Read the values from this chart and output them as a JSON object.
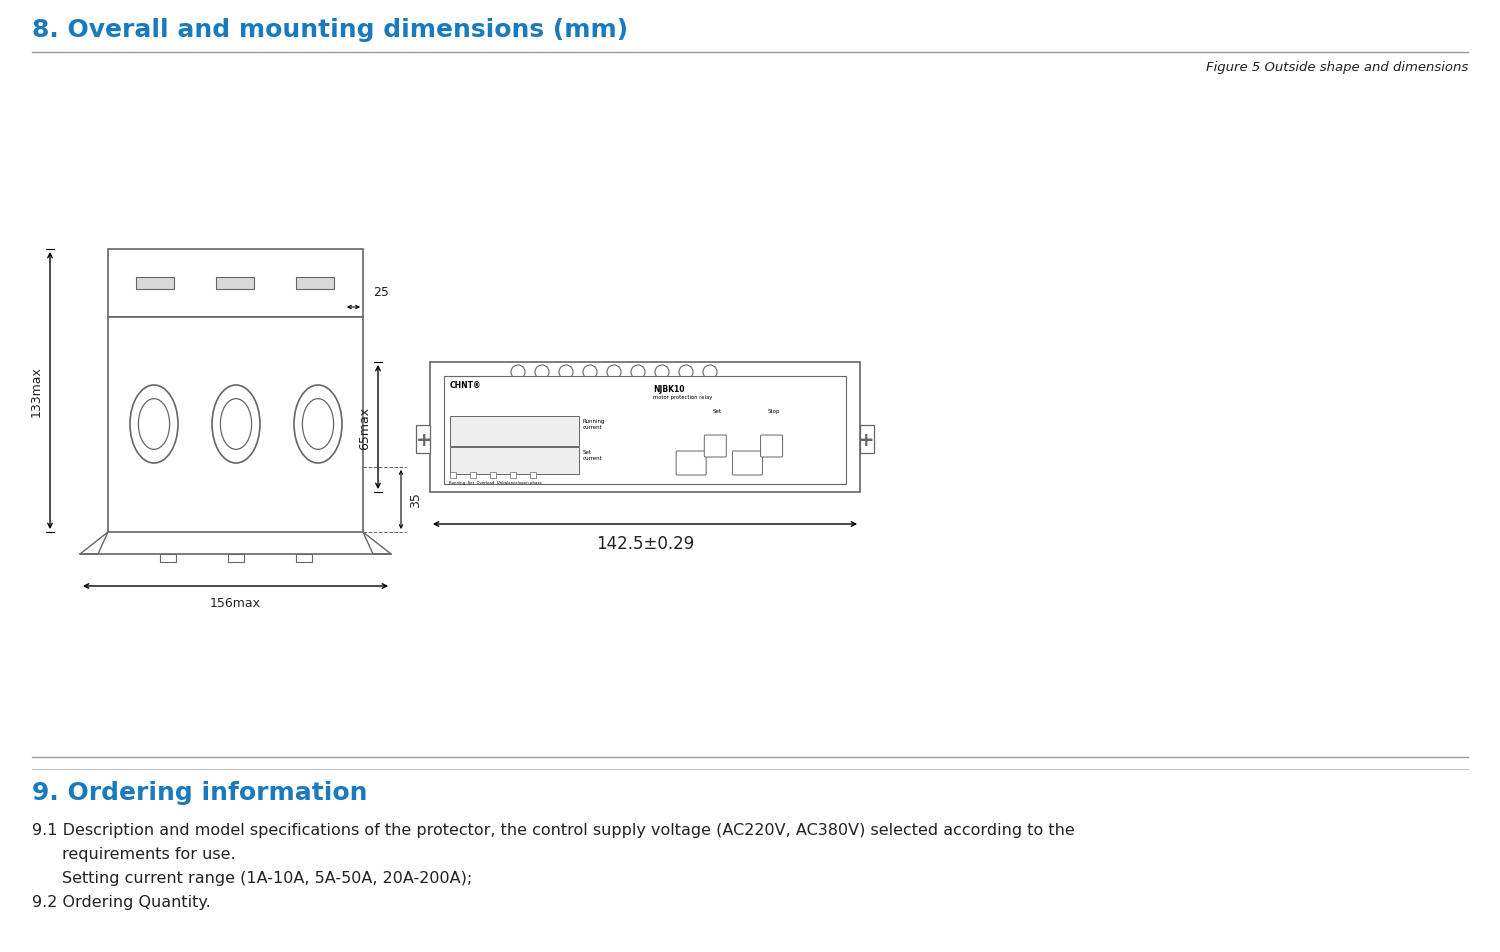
{
  "title_section8": "8. Overall and mounting dimensions (mm)",
  "figure_caption": "Figure 5 Outside shape and dimensions",
  "title_section9": "9. Ordering information",
  "ordering_text1": "9.1 Description and model specifications of the protector, the control supply voltage (AC220V, AC380V) selected according to the",
  "ordering_text1b": "requirements for use.",
  "ordering_text1c": "Setting current range (1A-10A, 5A-50A, 20A-200A);",
  "ordering_text2": "9.2 Ordering Quantity.",
  "bg_color": "#ffffff",
  "line_color": "#666666",
  "title_color": "#1a7abf",
  "text_color": "#222222",
  "dim_156": "156max",
  "dim_133": "133max",
  "dim_25": "25",
  "dim_35": "35",
  "dim_65": "65max",
  "dim_142": "142.5±0.29"
}
